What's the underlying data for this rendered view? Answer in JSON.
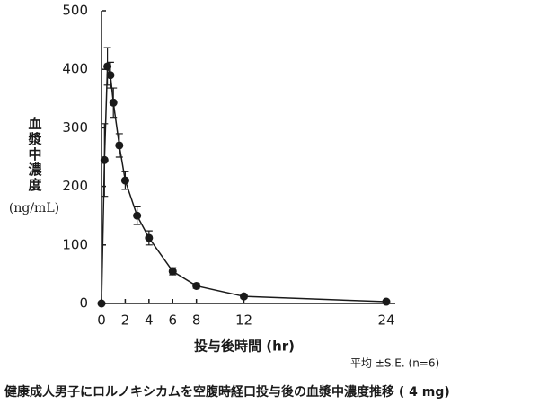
{
  "chart_data": {
    "type": "line",
    "ylabel": "血漿中濃度",
    "yunit": "(ng/mL)",
    "xlabel": "投与後時間 (hr)",
    "note": "平均 ±S.E. (n=6)",
    "caption": "健康成人男子にロルノキシカムを空腹時経口投与後の血漿中濃度推移 ( 4 mg)",
    "x": [
      0,
      0.25,
      0.5,
      0.75,
      1,
      1.5,
      2,
      3,
      4,
      6,
      8,
      12,
      24
    ],
    "series": [
      {
        "color": "#1a1a1a",
        "values": [
          0,
          245,
          405,
          390,
          343,
          270,
          210,
          150,
          112,
          55,
          30,
          12,
          3
        ],
        "errors": [
          0,
          62,
          32,
          22,
          25,
          20,
          15,
          15,
          12,
          6,
          4,
          3,
          1
        ]
      }
    ],
    "xlim": [
      0,
      24
    ],
    "xticks": [
      0,
      2,
      4,
      6,
      8,
      12,
      24
    ],
    "ylim": [
      0,
      500
    ],
    "yticks": [
      0,
      100,
      200,
      300,
      400,
      500
    ]
  }
}
